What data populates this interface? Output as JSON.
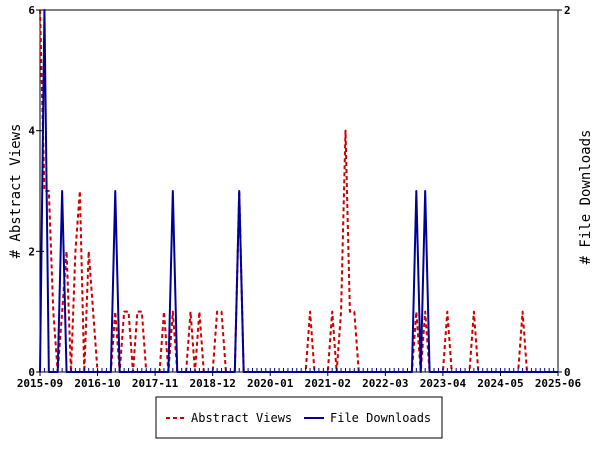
{
  "chart_data": {
    "type": "line",
    "title": "",
    "x_tick_labels": [
      "2015-09",
      "2016-10",
      "2017-11",
      "2018-12",
      "2020-01",
      "2021-02",
      "2022-03",
      "2023-04",
      "2024-05",
      "2025-06"
    ],
    "y_left": {
      "label": "# Abstract Views",
      "ticks": [
        "0",
        "2",
        "4",
        "6"
      ],
      "min": 0,
      "max": 6
    },
    "y_right": {
      "label": "# File Downloads",
      "ticks": [
        "0",
        "2"
      ],
      "min": 0,
      "max": 2
    },
    "x_range": [
      "2015-09",
      "2025-06"
    ],
    "grid": false,
    "legend_placement": "bottom",
    "series": [
      {
        "name": "Abstract Views",
        "axis": "left",
        "color": "#cc0000",
        "style": "dashed",
        "points": [
          [
            "2015-09",
            6
          ],
          [
            "2015-10",
            3
          ],
          [
            "2015-11",
            3
          ],
          [
            "2015-12",
            1
          ],
          [
            "2016-01",
            0
          ],
          [
            "2016-02",
            1
          ],
          [
            "2016-03",
            2
          ],
          [
            "2016-04",
            0
          ],
          [
            "2016-05",
            2
          ],
          [
            "2016-06",
            3
          ],
          [
            "2016-07",
            0
          ],
          [
            "2016-08",
            2
          ],
          [
            "2016-09",
            1
          ],
          [
            "2016-10",
            0
          ],
          [
            "2016-11",
            0
          ],
          [
            "2016-12",
            0
          ],
          [
            "2017-01",
            0
          ],
          [
            "2017-02",
            1
          ],
          [
            "2017-03",
            0
          ],
          [
            "2017-04",
            1
          ],
          [
            "2017-05",
            1
          ],
          [
            "2017-06",
            0
          ],
          [
            "2017-07",
            1
          ],
          [
            "2017-08",
            1
          ],
          [
            "2017-09",
            0
          ],
          [
            "2017-10",
            0
          ],
          [
            "2017-11",
            0
          ],
          [
            "2017-12",
            0
          ],
          [
            "2018-01",
            1
          ],
          [
            "2018-02",
            0
          ],
          [
            "2018-03",
            1
          ],
          [
            "2018-04",
            0
          ],
          [
            "2018-05",
            0
          ],
          [
            "2018-06",
            0
          ],
          [
            "2018-07",
            1
          ],
          [
            "2018-08",
            0
          ],
          [
            "2018-09",
            1
          ],
          [
            "2018-10",
            0
          ],
          [
            "2018-11",
            0
          ],
          [
            "2018-12",
            0
          ],
          [
            "2019-01",
            1
          ],
          [
            "2019-02",
            1
          ],
          [
            "2019-03",
            0
          ],
          [
            "2019-04",
            0
          ],
          [
            "2019-05",
            0
          ],
          [
            "2019-06",
            3
          ],
          [
            "2019-07",
            0
          ],
          [
            "2019-08",
            0
          ],
          [
            "2019-09",
            0
          ],
          [
            "2019-10",
            0
          ],
          [
            "2019-11",
            0
          ],
          [
            "2019-12",
            0
          ],
          [
            "2020-01",
            0
          ],
          [
            "2020-02",
            0
          ],
          [
            "2020-03",
            0
          ],
          [
            "2020-04",
            0
          ],
          [
            "2020-05",
            0
          ],
          [
            "2020-06",
            0
          ],
          [
            "2020-07",
            0
          ],
          [
            "2020-08",
            0
          ],
          [
            "2020-09",
            0
          ],
          [
            "2020-10",
            1
          ],
          [
            "2020-11",
            0
          ],
          [
            "2020-12",
            0
          ],
          [
            "2021-01",
            0
          ],
          [
            "2021-02",
            0
          ],
          [
            "2021-03",
            1
          ],
          [
            "2021-04",
            0
          ],
          [
            "2021-05",
            1
          ],
          [
            "2021-06",
            4
          ],
          [
            "2021-07",
            1
          ],
          [
            "2021-08",
            1
          ],
          [
            "2021-09",
            0
          ],
          [
            "2021-10",
            0
          ],
          [
            "2021-11",
            0
          ],
          [
            "2021-12",
            0
          ],
          [
            "2022-01",
            0
          ],
          [
            "2022-02",
            0
          ],
          [
            "2022-03",
            0
          ],
          [
            "2022-04",
            0
          ],
          [
            "2022-05",
            0
          ],
          [
            "2022-06",
            0
          ],
          [
            "2022-07",
            0
          ],
          [
            "2022-08",
            0
          ],
          [
            "2022-09",
            0
          ],
          [
            "2022-10",
            1
          ],
          [
            "2022-11",
            0
          ],
          [
            "2022-12",
            1
          ],
          [
            "2023-01",
            0
          ],
          [
            "2023-02",
            0
          ],
          [
            "2023-03",
            0
          ],
          [
            "2023-04",
            0
          ],
          [
            "2023-05",
            1
          ],
          [
            "2023-06",
            0
          ],
          [
            "2023-07",
            0
          ],
          [
            "2023-08",
            0
          ],
          [
            "2023-09",
            0
          ],
          [
            "2023-10",
            0
          ],
          [
            "2023-11",
            1
          ],
          [
            "2023-12",
            0
          ],
          [
            "2024-01",
            0
          ],
          [
            "2024-02",
            0
          ],
          [
            "2024-03",
            0
          ],
          [
            "2024-04",
            0
          ],
          [
            "2024-05",
            0
          ],
          [
            "2024-06",
            0
          ],
          [
            "2024-07",
            0
          ],
          [
            "2024-08",
            0
          ],
          [
            "2024-09",
            0
          ],
          [
            "2024-10",
            1
          ],
          [
            "2024-11",
            0
          ],
          [
            "2024-12",
            0
          ],
          [
            "2025-01",
            0
          ],
          [
            "2025-02",
            0
          ],
          [
            "2025-03",
            0
          ],
          [
            "2025-04",
            0
          ],
          [
            "2025-05",
            0
          ],
          [
            "2025-06",
            0
          ]
        ]
      },
      {
        "name": "File Downloads",
        "axis": "right",
        "color": "#000099",
        "style": "solid",
        "points": [
          [
            "2015-09",
            0
          ],
          [
            "2015-10",
            2
          ],
          [
            "2015-11",
            0
          ],
          [
            "2015-12",
            0
          ],
          [
            "2016-01",
            0
          ],
          [
            "2016-02",
            1
          ],
          [
            "2016-03",
            0
          ],
          [
            "2016-04",
            0
          ],
          [
            "2016-05",
            0
          ],
          [
            "2016-06",
            0
          ],
          [
            "2016-07",
            0
          ],
          [
            "2016-08",
            0
          ],
          [
            "2016-09",
            0
          ],
          [
            "2016-10",
            0
          ],
          [
            "2016-11",
            0
          ],
          [
            "2016-12",
            0
          ],
          [
            "2017-01",
            0
          ],
          [
            "2017-02",
            1
          ],
          [
            "2017-03",
            0
          ],
          [
            "2017-04",
            0
          ],
          [
            "2017-05",
            0
          ],
          [
            "2017-06",
            0
          ],
          [
            "2017-07",
            0
          ],
          [
            "2017-08",
            0
          ],
          [
            "2017-09",
            0
          ],
          [
            "2017-10",
            0
          ],
          [
            "2017-11",
            0
          ],
          [
            "2017-12",
            0
          ],
          [
            "2018-01",
            0
          ],
          [
            "2018-02",
            0
          ],
          [
            "2018-03",
            1
          ],
          [
            "2018-04",
            0
          ],
          [
            "2018-05",
            0
          ],
          [
            "2018-06",
            0
          ],
          [
            "2018-07",
            0
          ],
          [
            "2018-08",
            0
          ],
          [
            "2018-09",
            0
          ],
          [
            "2018-10",
            0
          ],
          [
            "2018-11",
            0
          ],
          [
            "2018-12",
            0
          ],
          [
            "2019-01",
            0
          ],
          [
            "2019-02",
            0
          ],
          [
            "2019-03",
            0
          ],
          [
            "2019-04",
            0
          ],
          [
            "2019-05",
            0
          ],
          [
            "2019-06",
            1
          ],
          [
            "2019-07",
            0
          ],
          [
            "2019-08",
            0
          ],
          [
            "2019-09",
            0
          ],
          [
            "2019-10",
            0
          ],
          [
            "2019-11",
            0
          ],
          [
            "2019-12",
            0
          ],
          [
            "2020-01",
            0
          ],
          [
            "2020-02",
            0
          ],
          [
            "2020-03",
            0
          ],
          [
            "2020-04",
            0
          ],
          [
            "2020-05",
            0
          ],
          [
            "2020-06",
            0
          ],
          [
            "2020-07",
            0
          ],
          [
            "2020-08",
            0
          ],
          [
            "2020-09",
            0
          ],
          [
            "2020-10",
            0
          ],
          [
            "2020-11",
            0
          ],
          [
            "2020-12",
            0
          ],
          [
            "2021-01",
            0
          ],
          [
            "2021-02",
            0
          ],
          [
            "2021-03",
            0
          ],
          [
            "2021-04",
            0
          ],
          [
            "2021-05",
            0
          ],
          [
            "2021-06",
            0
          ],
          [
            "2021-07",
            0
          ],
          [
            "2021-08",
            0
          ],
          [
            "2021-09",
            0
          ],
          [
            "2021-10",
            0
          ],
          [
            "2021-11",
            0
          ],
          [
            "2021-12",
            0
          ],
          [
            "2022-01",
            0
          ],
          [
            "2022-02",
            0
          ],
          [
            "2022-03",
            0
          ],
          [
            "2022-04",
            0
          ],
          [
            "2022-05",
            0
          ],
          [
            "2022-06",
            0
          ],
          [
            "2022-07",
            0
          ],
          [
            "2022-08",
            0
          ],
          [
            "2022-09",
            0
          ],
          [
            "2022-10",
            1
          ],
          [
            "2022-11",
            0
          ],
          [
            "2022-12",
            1
          ],
          [
            "2023-01",
            0
          ],
          [
            "2023-02",
            0
          ],
          [
            "2023-03",
            0
          ],
          [
            "2023-04",
            0
          ],
          [
            "2023-05",
            0
          ],
          [
            "2023-06",
            0
          ],
          [
            "2023-07",
            0
          ],
          [
            "2023-08",
            0
          ],
          [
            "2023-09",
            0
          ],
          [
            "2023-10",
            0
          ],
          [
            "2023-11",
            0
          ],
          [
            "2023-12",
            0
          ],
          [
            "2024-01",
            0
          ],
          [
            "2024-02",
            0
          ],
          [
            "2024-03",
            0
          ],
          [
            "2024-04",
            0
          ],
          [
            "2024-05",
            0
          ],
          [
            "2024-06",
            0
          ],
          [
            "2024-07",
            0
          ],
          [
            "2024-08",
            0
          ],
          [
            "2024-09",
            0
          ],
          [
            "2024-10",
            0
          ],
          [
            "2024-11",
            0
          ],
          [
            "2024-12",
            0
          ],
          [
            "2025-01",
            0
          ],
          [
            "2025-02",
            0
          ],
          [
            "2025-03",
            0
          ],
          [
            "2025-04",
            0
          ],
          [
            "2025-05",
            0
          ],
          [
            "2025-06",
            0
          ]
        ]
      }
    ]
  }
}
